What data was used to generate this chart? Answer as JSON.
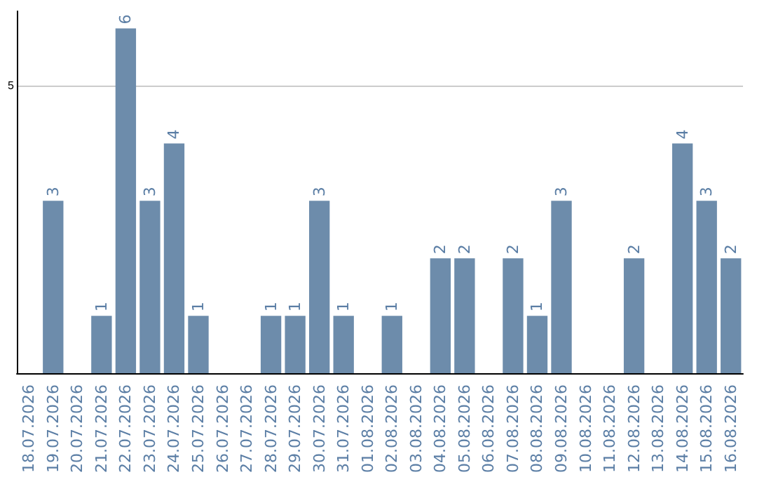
{
  "chart_data": {
    "type": "bar",
    "categories": [
      "18.07.2026",
      "19.07.2026",
      "20.07.2026",
      "21.07.2026",
      "22.07.2026",
      "23.07.2026",
      "24.07.2026",
      "25.07.2026",
      "26.07.2026",
      "27.07.2026",
      "28.07.2026",
      "29.07.2026",
      "30.07.2026",
      "31.07.2026",
      "01.08.2026",
      "02.08.2026",
      "03.08.2026",
      "04.08.2026",
      "05.08.2026",
      "06.08.2026",
      "07.08.2026",
      "08.08.2026",
      "09.08.2026",
      "10.08.2026",
      "11.08.2026",
      "12.08.2026",
      "13.08.2026",
      "14.08.2026",
      "15.08.2026",
      "16.08.2026"
    ],
    "values": [
      0,
      3,
      0,
      1,
      6,
      3,
      4,
      1,
      0,
      0,
      1,
      1,
      3,
      1,
      0,
      1,
      0,
      2,
      2,
      0,
      2,
      1,
      3,
      0,
      0,
      2,
      0,
      4,
      3,
      2
    ],
    "value_labels": [
      null,
      "3",
      null,
      "1",
      "6",
      "3",
      "4",
      "1",
      null,
      null,
      "1",
      "1",
      "3",
      "1",
      null,
      "1",
      null,
      "2",
      "2",
      null,
      "2",
      "1",
      "3",
      null,
      null,
      "2",
      null,
      "4",
      "3",
      "2"
    ],
    "color": "#6d8cab",
    "ylim": [
      0,
      6.3
    ],
    "yticks": [
      5
    ],
    "grid": "y"
  }
}
